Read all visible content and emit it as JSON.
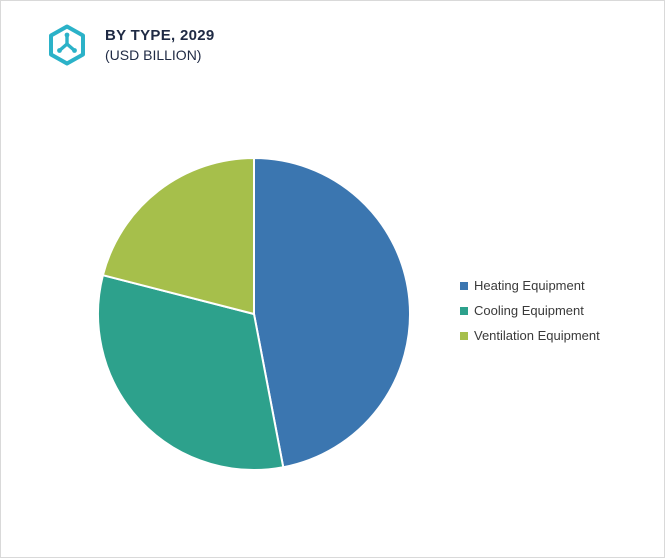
{
  "header": {
    "title": "BY TYPE, 2029",
    "subtitle": "(USD BILLION)"
  },
  "logo": {
    "name": "hexagon-brand-mark",
    "color": "#2bb2c8"
  },
  "chart_data": {
    "type": "pie",
    "title": "BY TYPE, 2029",
    "subtitle": "(USD BILLION)",
    "categories": [
      "Heating Equipment",
      "Cooling Equipment",
      "Ventilation Equipment"
    ],
    "values": [
      47,
      32,
      21
    ],
    "value_note": "percent share estimated from slice angles; no data labels shown",
    "colors": [
      "#3b76b0",
      "#2da18c",
      "#a6bf4b"
    ],
    "legend_position": "right",
    "start_angle_deg": 0,
    "direction": "clockwise",
    "slice_gap_color": "#ffffff"
  }
}
